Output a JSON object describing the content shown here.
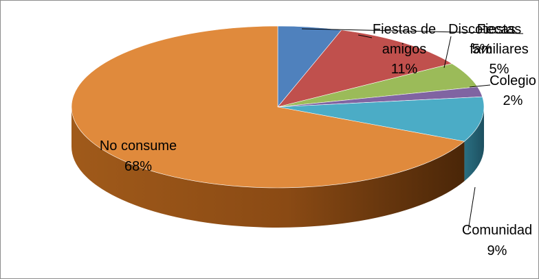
{
  "chart_data": {
    "type": "pie",
    "three_d": true,
    "title": "",
    "slices": [
      {
        "label": "Fiestas familiares",
        "value": 5,
        "percent_label": "5%",
        "color": "#4f81bd"
      },
      {
        "label": "Fiestas de amigos",
        "value": 11,
        "percent_label": "11%",
        "color": "#c0504d"
      },
      {
        "label": "Discotecas",
        "value": 5,
        "percent_label": "5%",
        "color": "#9bbb59"
      },
      {
        "label": "Colegio",
        "value": 2,
        "percent_label": "2%",
        "color": "#8064a2"
      },
      {
        "label": "Comunidad",
        "value": 9,
        "percent_label": "9%",
        "color": "#4bacc6"
      },
      {
        "label": "No consume",
        "value": 68,
        "percent_label": "68%",
        "color": "#e08a3c"
      }
    ],
    "legend": "none",
    "data_labels": "outside-with-leader-lines"
  }
}
